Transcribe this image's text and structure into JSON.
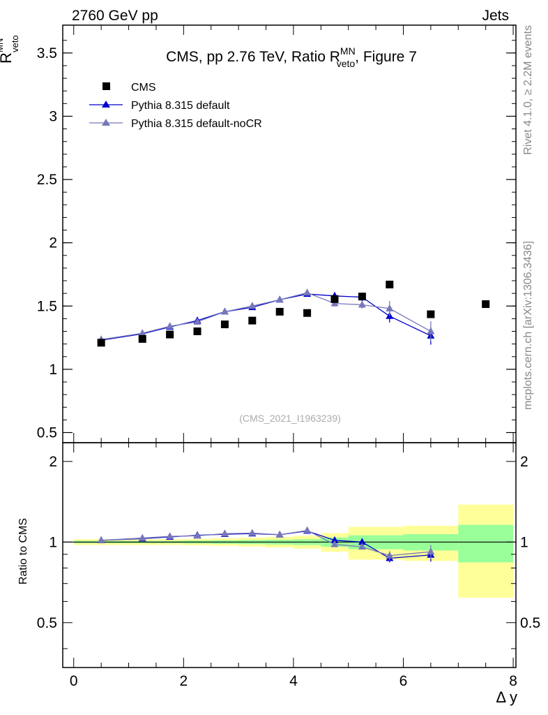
{
  "header": {
    "left": "2760 GeV pp",
    "right": "Jets",
    "side_top": "Rivet 4.1.0, ≥ 2.2M events",
    "side_bottom": "mcplots.cern.ch [arXiv:1306.3436]",
    "watermark": "(CMS_2021_I1963239)"
  },
  "colors": {
    "data": "#000000",
    "default": "#0000cc",
    "nocr": "#7777bb",
    "band_inner": "#99ff99",
    "band_outer": "#ffff99"
  },
  "chart_data": [
    {
      "type": "scatter",
      "title": "CMS, pp 2.76 TeV, Ratio R",
      "title_sup": "MN",
      "title_sub": "veto",
      "title_tail": ", Figure 7",
      "ylabel": "R",
      "ylabel_sup": "MN",
      "ylabel_sub": "veto",
      "xlim": [
        -0.2,
        8.05
      ],
      "ylim": [
        0.42,
        3.72
      ],
      "yticks": [
        0.5,
        1,
        1.5,
        2,
        2.5,
        3,
        3.5
      ],
      "ytick_labels": [
        "0.5",
        "1",
        "1.5",
        "2",
        "2.5",
        "3",
        "3.5"
      ],
      "legend_position": "top-left",
      "series": [
        {
          "name": "CMS",
          "style": "markers",
          "x": [
            0.5,
            1.25,
            1.75,
            2.25,
            2.75,
            3.25,
            3.75,
            4.25,
            4.75,
            5.25,
            5.75,
            6.5,
            7.5
          ],
          "y": [
            1.21,
            1.24,
            1.275,
            1.3,
            1.355,
            1.385,
            1.455,
            1.445,
            1.555,
            1.575,
            1.67,
            1.435,
            1.515
          ]
        },
        {
          "name": "Pythia 8.315 default",
          "style": "line",
          "x": [
            0.5,
            1.25,
            1.75,
            2.25,
            2.75,
            3.25,
            3.75,
            4.25,
            4.75,
            5.25,
            5.75,
            6.5
          ],
          "y": [
            1.23,
            1.28,
            1.335,
            1.385,
            1.455,
            1.49,
            1.55,
            1.595,
            1.58,
            1.57,
            1.42,
            1.265
          ],
          "err": [
            0.005,
            0.005,
            0.005,
            0.006,
            0.007,
            0.008,
            0.01,
            0.015,
            0.03,
            0.03,
            0.05,
            0.07
          ]
        },
        {
          "name": "Pythia 8.315 default-noCR",
          "style": "line",
          "x": [
            0.5,
            1.25,
            1.75,
            2.25,
            2.75,
            3.25,
            3.75,
            4.25,
            4.75,
            5.25,
            5.75,
            6.5
          ],
          "y": [
            1.235,
            1.285,
            1.34,
            1.375,
            1.455,
            1.5,
            1.55,
            1.605,
            1.52,
            1.51,
            1.48,
            1.3
          ],
          "err": [
            0.005,
            0.005,
            0.005,
            0.006,
            0.007,
            0.008,
            0.01,
            0.015,
            0.025,
            0.03,
            0.06,
            0.08
          ]
        }
      ]
    },
    {
      "type": "scatter",
      "ylabel": "Ratio to CMS",
      "xlabel": "Δ y",
      "xlim": [
        -0.2,
        8.05
      ],
      "ylim": [
        0.34,
        2.35
      ],
      "xticks": [
        0,
        2,
        4,
        6,
        8
      ],
      "xtick_labels": [
        "0",
        "2",
        "4",
        "6",
        "8"
      ],
      "yticks": [
        0.5,
        1,
        2
      ],
      "ytick_labels": [
        "0.5",
        "1",
        "2"
      ],
      "bands": [
        {
          "x0": 0,
          "x1": 1.0,
          "inner": [
            0.99,
            1.01
          ],
          "outer": [
            0.975,
            1.025
          ]
        },
        {
          "x0": 1.0,
          "x1": 1.5,
          "inner": [
            0.99,
            1.01
          ],
          "outer": [
            0.975,
            1.025
          ]
        },
        {
          "x0": 1.5,
          "x1": 2.0,
          "inner": [
            0.99,
            1.01
          ],
          "outer": [
            0.975,
            1.025
          ]
        },
        {
          "x0": 2.0,
          "x1": 2.5,
          "inner": [
            0.987,
            1.013
          ],
          "outer": [
            0.972,
            1.028
          ]
        },
        {
          "x0": 2.5,
          "x1": 3.0,
          "inner": [
            0.985,
            1.015
          ],
          "outer": [
            0.968,
            1.032
          ]
        },
        {
          "x0": 3.0,
          "x1": 3.5,
          "inner": [
            0.982,
            1.018
          ],
          "outer": [
            0.962,
            1.038
          ]
        },
        {
          "x0": 3.5,
          "x1": 4.0,
          "inner": [
            0.979,
            1.021
          ],
          "outer": [
            0.955,
            1.045
          ]
        },
        {
          "x0": 4.0,
          "x1": 4.5,
          "inner": [
            0.975,
            1.025
          ],
          "outer": [
            0.945,
            1.055
          ]
        },
        {
          "x0": 4.5,
          "x1": 5.0,
          "inner": [
            0.96,
            1.04
          ],
          "outer": [
            0.92,
            1.08
          ]
        },
        {
          "x0": 5.0,
          "x1": 5.5,
          "inner": [
            0.94,
            1.06
          ],
          "outer": [
            0.86,
            1.14
          ]
        },
        {
          "x0": 5.5,
          "x1": 6.0,
          "inner": [
            0.94,
            1.06
          ],
          "outer": [
            0.86,
            1.14
          ]
        },
        {
          "x0": 6.0,
          "x1": 7.0,
          "inner": [
            0.93,
            1.07
          ],
          "outer": [
            0.85,
            1.15
          ]
        },
        {
          "x0": 7.0,
          "x1": 8.0,
          "inner": [
            0.84,
            1.16
          ],
          "outer": [
            0.62,
            1.38
          ]
        }
      ],
      "series": [
        {
          "name": "Pythia 8.315 default",
          "x": [
            0.5,
            1.25,
            1.75,
            2.25,
            2.75,
            3.25,
            3.75,
            4.25,
            4.75,
            5.25,
            5.75,
            6.5
          ],
          "y": [
            1.015,
            1.03,
            1.045,
            1.06,
            1.07,
            1.075,
            1.065,
            1.1,
            1.015,
            1.0,
            0.87,
            0.895
          ],
          "err": [
            0.004,
            0.004,
            0.004,
            0.005,
            0.005,
            0.006,
            0.007,
            0.01,
            0.02,
            0.02,
            0.03,
            0.05
          ]
        },
        {
          "name": "Pythia 8.315 default-noCR",
          "x": [
            0.5,
            1.25,
            1.75,
            2.25,
            2.75,
            3.25,
            3.75,
            4.25,
            4.75,
            5.25,
            5.75,
            6.5
          ],
          "y": [
            1.015,
            1.035,
            1.05,
            1.055,
            1.075,
            1.08,
            1.065,
            1.105,
            0.98,
            0.96,
            0.89,
            0.92
          ],
          "err": [
            0.004,
            0.004,
            0.004,
            0.005,
            0.005,
            0.006,
            0.007,
            0.01,
            0.02,
            0.02,
            0.035,
            0.055
          ]
        }
      ]
    }
  ]
}
